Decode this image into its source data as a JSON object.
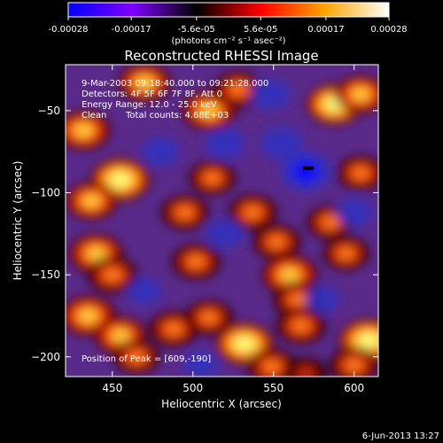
{
  "chart_data": {
    "type": "heatmap",
    "title": "Reconstructed RHESSI Image",
    "colorbar": {
      "range": [
        -0.00028,
        0.00028
      ],
      "tick_labels": [
        "-0.00028",
        "-0.00017",
        "-5.6e-05",
        "5.6e-05",
        "0.00017",
        "0.00028"
      ],
      "tick_values": [
        -0.00028,
        -0.00017,
        -5.6e-05,
        5.6e-05,
        0.00017,
        0.00028
      ],
      "unit_label": "(photons cm⁻² s⁻¹ asec⁻²)",
      "colors": [
        "#0000ff",
        "#7f00ff",
        "#000000",
        "#ff0000",
        "#ffa500",
        "#ffffff"
      ]
    },
    "annotations": {
      "time_range": "9-Mar-2003 09:18:40.000 to 09:21:28.000",
      "detectors": "Detectors: 4F 5F 6F 7F 8F, Att 0",
      "energy_range": "Energy Range: 12.0 - 25.0 keV",
      "clean_label": "Clean",
      "total_counts": "Total counts: 4.68E+03",
      "peak_position": "Position of Peak = [609,-190]"
    },
    "xlabel": "Heliocentric X (arcsec)",
    "ylabel": "Heliocentric Y (arcsec)",
    "xlim": [
      421,
      615
    ],
    "ylim": [
      -212,
      -22
    ],
    "xticks": [
      450,
      500,
      550,
      600
    ],
    "yticks": [
      -50,
      -100,
      -150,
      -200
    ],
    "xtick_labels": [
      "450",
      "500",
      "550",
      "600"
    ],
    "ytick_labels": [
      "−50",
      "−100",
      "−150",
      "−200"
    ],
    "background_level": "#5a2a8a",
    "blobs": [
      {
        "x": 455,
        "y": -92,
        "level": 1.0
      },
      {
        "x": 437,
        "y": -105,
        "level": 0.7
      },
      {
        "x": 470,
        "y": -33,
        "level": 0.75
      },
      {
        "x": 432,
        "y": -62,
        "level": 0.8
      },
      {
        "x": 510,
        "y": -50,
        "level": 0.8
      },
      {
        "x": 528,
        "y": -37,
        "level": 0.6
      },
      {
        "x": 588,
        "y": -46,
        "level": 0.9
      },
      {
        "x": 604,
        "y": -40,
        "level": 0.7
      },
      {
        "x": 604,
        "y": -88,
        "level": 0.55
      },
      {
        "x": 495,
        "y": -112,
        "level": 0.55
      },
      {
        "x": 537,
        "y": -112,
        "level": 0.6
      },
      {
        "x": 512,
        "y": -91,
        "level": 0.5
      },
      {
        "x": 440,
        "y": -137,
        "level": 0.8
      },
      {
        "x": 450,
        "y": -150,
        "level": 0.65
      },
      {
        "x": 435,
        "y": -175,
        "level": 0.85
      },
      {
        "x": 455,
        "y": -187,
        "level": 0.7
      },
      {
        "x": 465,
        "y": -200,
        "level": 0.5
      },
      {
        "x": 502,
        "y": -142,
        "level": 0.6
      },
      {
        "x": 552,
        "y": -130,
        "level": 0.55
      },
      {
        "x": 560,
        "y": -150,
        "level": 0.85
      },
      {
        "x": 565,
        "y": -165,
        "level": 0.6
      },
      {
        "x": 595,
        "y": -137,
        "level": 0.5
      },
      {
        "x": 585,
        "y": -118,
        "level": 0.5
      },
      {
        "x": 488,
        "y": -183,
        "level": 0.6
      },
      {
        "x": 510,
        "y": -176,
        "level": 0.55
      },
      {
        "x": 532,
        "y": -192,
        "level": 0.95
      },
      {
        "x": 549,
        "y": -206,
        "level": 0.6
      },
      {
        "x": 567,
        "y": -181,
        "level": 0.65
      },
      {
        "x": 609,
        "y": -190,
        "level": 1.0
      },
      {
        "x": 600,
        "y": -205,
        "level": 0.6
      },
      {
        "x": 570,
        "y": -210,
        "level": 0.4
      }
    ],
    "holes": [
      {
        "x": 570,
        "y": -87,
        "level": -1.0
      },
      {
        "x": 555,
        "y": -70,
        "level": -0.7
      },
      {
        "x": 520,
        "y": -70,
        "level": -0.6
      },
      {
        "x": 548,
        "y": -40,
        "level": -0.6
      },
      {
        "x": 480,
        "y": -75,
        "level": -0.5
      },
      {
        "x": 520,
        "y": -125,
        "level": -0.5
      },
      {
        "x": 600,
        "y": -112,
        "level": -0.5
      },
      {
        "x": 580,
        "y": -165,
        "level": -0.4
      },
      {
        "x": 470,
        "y": -160,
        "level": -0.4
      },
      {
        "x": 505,
        "y": -205,
        "level": -0.4
      }
    ]
  },
  "footer": {
    "timestamp": "6-Jun-2013 13:27"
  }
}
